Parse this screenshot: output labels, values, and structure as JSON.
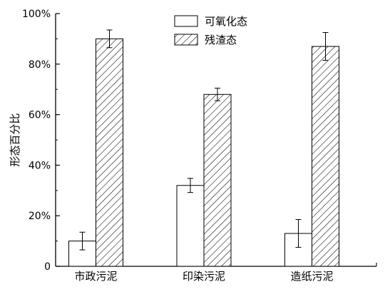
{
  "chart_data": {
    "type": "bar",
    "categories": [
      "市政污泥",
      "印染污泥",
      "造纸污泥"
    ],
    "series": [
      {
        "name": "可氧化态",
        "values": [
          10,
          32,
          13
        ],
        "errors": [
          3.5,
          2.8,
          5.5
        ],
        "fill": "none"
      },
      {
        "name": "残渣态",
        "values": [
          90,
          68,
          87
        ],
        "errors": [
          3.5,
          2.5,
          5.5
        ],
        "fill": "hatched"
      }
    ],
    "ylabel": "形态百分比",
    "xlabel": "",
    "ylim": [
      0,
      100
    ],
    "yticks": [
      "0",
      "20%",
      "40%",
      "60%",
      "80%",
      "100%"
    ],
    "yticks_values": [
      0,
      20,
      40,
      60,
      80,
      100
    ],
    "grid": false,
    "legend": "top-center",
    "colors": {
      "stroke": "#000000",
      "background": "#ffffff"
    }
  }
}
